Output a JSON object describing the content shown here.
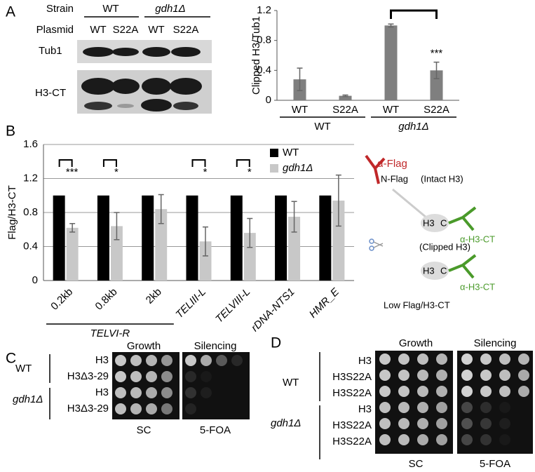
{
  "panel_labels": [
    "A",
    "B",
    "C",
    "D"
  ],
  "blot": {
    "strain_label": "Strain",
    "strains": [
      "WT",
      "gdh1Δ"
    ],
    "plasmid_label": "Plasmid",
    "plasmids": [
      "WT",
      "S22A",
      "WT",
      "S22A"
    ],
    "rows": [
      "Tub1",
      "H3-CT"
    ]
  },
  "chart_data": [
    {
      "type": "bar",
      "y_label": "Clipped H3/Tub1",
      "categories": [
        "WT",
        "S22A",
        "WT",
        "S22A"
      ],
      "values": [
        0.28,
        0.06,
        1.0,
        0.4
      ],
      "errors": [
        0.15,
        0.01,
        0.02,
        0.11
      ],
      "color": "#7f7f7f",
      "ylim": [
        0,
        1.2
      ],
      "yticks": [
        0,
        0.4,
        0.8,
        1.2
      ],
      "grid": false,
      "groups": [
        {
          "label": "WT",
          "first": 0,
          "last": 1
        },
        {
          "label": "gdh1Δ",
          "first": 2,
          "last": 3
        }
      ],
      "significance": [
        {
          "from": 2,
          "to": 3,
          "label": "***"
        }
      ]
    },
    {
      "type": "grouped_bar",
      "y_label": "Flag/H3-CT",
      "categories": [
        "0.2kb",
        "0.8kb",
        "2kb",
        "TELIII-L",
        "TELVIII-L",
        "rDNA-NTS1",
        "HMR_E"
      ],
      "series": [
        {
          "name": "WT",
          "color": "#000000",
          "values": [
            1,
            1,
            1,
            1,
            1,
            1,
            1
          ]
        },
        {
          "name": "gdh1Δ",
          "color": "#c8c8c8",
          "values": [
            0.62,
            0.64,
            0.84,
            0.46,
            0.56,
            0.75,
            0.94
          ],
          "errors": [
            0.05,
            0.16,
            0.17,
            0.17,
            0.17,
            0.18,
            0.3
          ]
        }
      ],
      "ylim": [
        0,
        1.6
      ],
      "yticks": [
        0,
        0.4,
        0.8,
        1.2,
        1.6
      ],
      "grid": true,
      "legend": "top-right",
      "groups": [
        {
          "label": "TELVI-R",
          "first": 0,
          "last": 2
        }
      ],
      "significance": [
        {
          "category": 0,
          "label": "***"
        },
        {
          "category": 1,
          "label": "*"
        },
        {
          "category": 3,
          "label": "*"
        },
        {
          "category": 4,
          "label": "*"
        }
      ]
    }
  ],
  "diagram": {
    "intact": {
      "antibody": "α-Flag",
      "tag": "N-Flag",
      "title": "(Intact H3)",
      "histone": "H3",
      "terminus": "C",
      "ct_antibody": "α-H3-CT"
    },
    "clipped": {
      "title": "(Clipped H3)",
      "histone": "H3",
      "terminus": "C",
      "ct_antibody": "α-H3-CT"
    },
    "caption": "Low Flag/H3-CT"
  },
  "spot_c": {
    "headers": [
      "Growth",
      "Silencing"
    ],
    "strains": [
      "WT",
      "gdh1Δ"
    ],
    "rows": [
      "H3",
      "H3Δ3-29",
      "H3",
      "H3Δ3-29"
    ],
    "media": [
      "SC",
      "5-FOA"
    ]
  },
  "spot_d": {
    "headers": [
      "Growth",
      "Silencing"
    ],
    "strains": [
      "WT",
      "gdh1Δ"
    ],
    "rows": [
      "H3",
      "H3S22A",
      "H3S22A",
      "H3",
      "H3S22A",
      "H3S22A"
    ],
    "media": [
      "SC",
      "5-FOA"
    ]
  }
}
